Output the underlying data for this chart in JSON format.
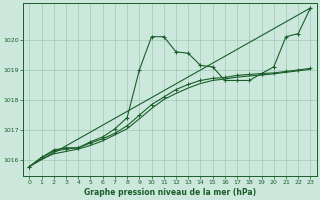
{
  "background_color": "#cce8dc",
  "grid_color": "#a0c8b8",
  "line_color": "#1a5e2a",
  "title": "Graphe pression niveau de la mer (hPa)",
  "xlim": [
    -0.5,
    23.5
  ],
  "ylim": [
    1015.5,
    1021.2
  ],
  "yticks": [
    1016,
    1017,
    1018,
    1019,
    1020
  ],
  "xticks": [
    0,
    1,
    2,
    3,
    4,
    5,
    6,
    7,
    8,
    9,
    10,
    11,
    12,
    13,
    14,
    15,
    16,
    17,
    18,
    19,
    20,
    21,
    22,
    23
  ],
  "series1_x": [
    0,
    1,
    2,
    3,
    4,
    5,
    6,
    7,
    8,
    9,
    10,
    11,
    12,
    13,
    14,
    15,
    16,
    17,
    18,
    19,
    20,
    21,
    22,
    23
  ],
  "series1_y": [
    1015.8,
    1016.1,
    1016.35,
    1016.42,
    1016.42,
    1016.62,
    1016.78,
    1017.05,
    1017.42,
    1019.0,
    1020.1,
    1020.1,
    1019.6,
    1019.55,
    1019.15,
    1019.1,
    1018.65,
    1018.65,
    1018.65,
    1018.88,
    1019.1,
    1020.1,
    1020.2,
    1021.05
  ],
  "series2_x": [
    0,
    1,
    2,
    3,
    4,
    5,
    6,
    7,
    8,
    9,
    10,
    11,
    12,
    13,
    14,
    15,
    16,
    17,
    18,
    19,
    20,
    21,
    22,
    23
  ],
  "series2_y": [
    1015.8,
    1016.1,
    1016.3,
    1016.38,
    1016.42,
    1016.58,
    1016.72,
    1016.9,
    1017.15,
    1017.5,
    1017.85,
    1018.1,
    1018.35,
    1018.52,
    1018.65,
    1018.72,
    1018.75,
    1018.82,
    1018.85,
    1018.88,
    1018.9,
    1018.95,
    1019.0,
    1019.05
  ],
  "series3_x": [
    0,
    1,
    2,
    3,
    4,
    5,
    6,
    7,
    8,
    9,
    10,
    11,
    12,
    13,
    14,
    15,
    16,
    17,
    18,
    19,
    20,
    21,
    22,
    23
  ],
  "series3_y": [
    1015.8,
    1016.05,
    1016.22,
    1016.3,
    1016.38,
    1016.5,
    1016.65,
    1016.85,
    1017.05,
    1017.38,
    1017.72,
    1018.02,
    1018.22,
    1018.4,
    1018.55,
    1018.65,
    1018.7,
    1018.76,
    1018.8,
    1018.83,
    1018.87,
    1018.92,
    1018.97,
    1019.02
  ],
  "series4_x": [
    0,
    23
  ],
  "series4_y": [
    1015.8,
    1021.05
  ]
}
